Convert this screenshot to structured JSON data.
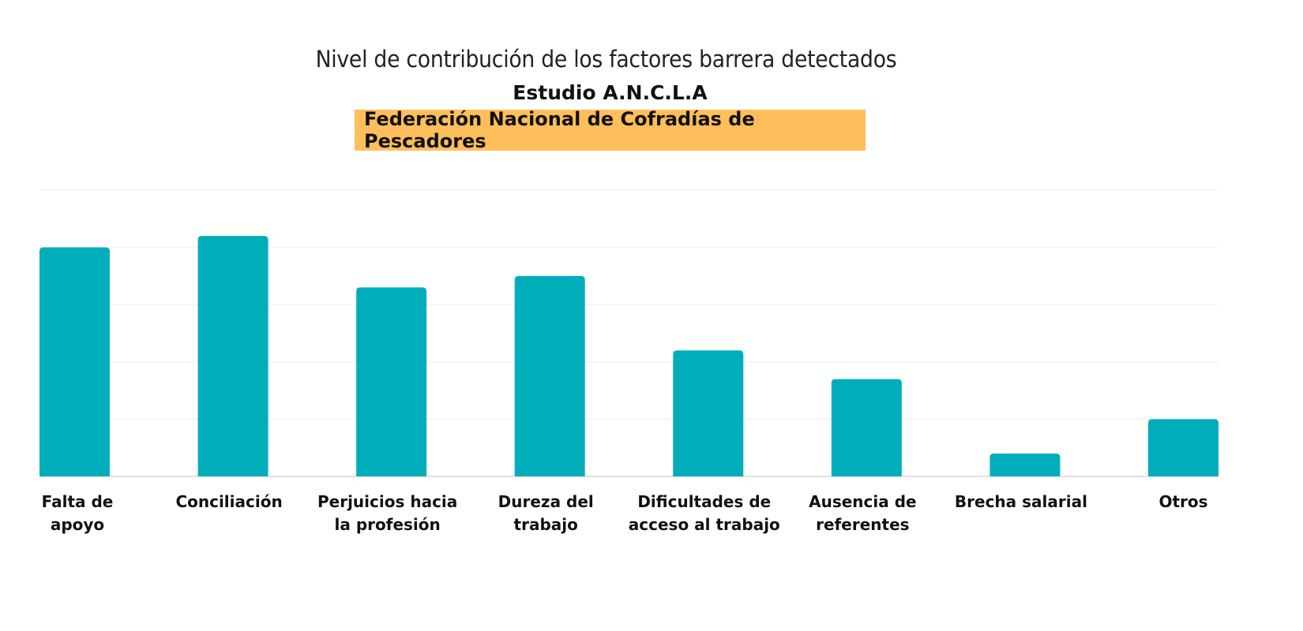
{
  "chart_data": {
    "type": "bar",
    "title": "Nivel de contribución de los factores barrera detectados",
    "subtitle": "Estudio A.N.C.L.A",
    "banner": "Federación Nacional de Cofradías de Pescadores",
    "categories": [
      [
        "Falta de",
        "apoyo"
      ],
      [
        "Conciliación"
      ],
      [
        "Perjuicios hacia",
        "la profesión"
      ],
      [
        "Dureza del",
        "trabajo"
      ],
      [
        "Dificultades de",
        "acceso al trabajo"
      ],
      [
        "Ausencia de",
        "referentes"
      ],
      [
        "Brecha salarial"
      ],
      [
        "Otros"
      ]
    ],
    "values": [
      4.0,
      4.2,
      3.3,
      3.5,
      2.2,
      1.7,
      0.4,
      1.0
    ],
    "ylim": [
      0,
      5
    ],
    "grid": true,
    "xlabel": "",
    "ylabel": "",
    "colors": {
      "bar": "#00aebb",
      "grid": "#eeeeee",
      "axis": "#d8d8d8",
      "banner": "#ffbe5c"
    }
  }
}
